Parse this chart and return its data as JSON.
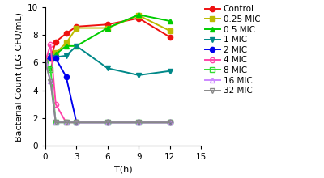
{
  "title": "",
  "xlabel": "T(h)",
  "ylabel": "Bacterial Count (LG CFU/mL)",
  "xlim": [
    0,
    15
  ],
  "ylim": [
    0,
    10
  ],
  "xticks": [
    0,
    3,
    6,
    9,
    12,
    15
  ],
  "yticks": [
    0,
    2,
    4,
    6,
    8,
    10
  ],
  "series": [
    {
      "label": "Control",
      "color": "#EE1111",
      "marker": "o",
      "markerfacecolor": "#EE1111",
      "markeredgecolor": "#EE1111",
      "x": [
        0,
        0.5,
        1,
        2,
        3,
        6,
        9,
        12
      ],
      "y": [
        6.05,
        6.3,
        7.5,
        8.1,
        8.6,
        8.75,
        9.2,
        7.85
      ]
    },
    {
      "label": "0.25 MIC",
      "color": "#BBBB00",
      "marker": "s",
      "markerfacecolor": "#BBBB00",
      "markeredgecolor": "#BBBB00",
      "x": [
        0,
        0.5,
        1,
        2,
        3,
        6,
        9,
        12
      ],
      "y": [
        6.05,
        6.3,
        6.7,
        7.4,
        8.5,
        8.5,
        9.4,
        8.3
      ]
    },
    {
      "label": "0.5 MIC",
      "color": "#00CC00",
      "marker": "^",
      "markerfacecolor": "#00CC00",
      "markeredgecolor": "#00CC00",
      "x": [
        0,
        0.5,
        1,
        2,
        3,
        6,
        9,
        12
      ],
      "y": [
        6.0,
        5.6,
        6.6,
        7.2,
        7.2,
        8.5,
        9.45,
        9.0
      ]
    },
    {
      "label": "1 MIC",
      "color": "#008888",
      "marker": "v",
      "markerfacecolor": "#008888",
      "markeredgecolor": "#008888",
      "x": [
        0,
        0.5,
        1,
        2,
        3,
        6,
        9,
        12
      ],
      "y": [
        6.05,
        6.5,
        6.4,
        6.5,
        7.2,
        5.6,
        5.1,
        5.4
      ]
    },
    {
      "label": "2 MIC",
      "color": "#0000EE",
      "marker": "o",
      "markerfacecolor": "#0000EE",
      "markeredgecolor": "#0000EE",
      "x": [
        0,
        0.5,
        1,
        2,
        3,
        6,
        9,
        12
      ],
      "y": [
        6.05,
        6.4,
        6.3,
        5.0,
        1.7,
        1.7,
        1.7,
        1.7
      ]
    },
    {
      "label": "4 MIC",
      "color": "#FF44AA",
      "marker": "o",
      "markerfacecolor": "none",
      "markeredgecolor": "#FF44AA",
      "x": [
        0,
        0.5,
        1,
        2,
        3,
        6,
        9,
        12
      ],
      "y": [
        6.1,
        7.3,
        3.0,
        1.7,
        1.7,
        1.7,
        1.7,
        1.7
      ]
    },
    {
      "label": "8 MIC",
      "color": "#33DD33",
      "marker": "s",
      "markerfacecolor": "none",
      "markeredgecolor": "#33DD33",
      "x": [
        0,
        0.5,
        1,
        2,
        3,
        6,
        9,
        12
      ],
      "y": [
        6.05,
        5.5,
        1.7,
        1.7,
        1.7,
        1.7,
        1.7,
        1.7
      ]
    },
    {
      "label": "16 MIC",
      "color": "#CC88FF",
      "marker": "^",
      "markerfacecolor": "none",
      "markeredgecolor": "#CC88FF",
      "x": [
        0,
        0.5,
        1,
        2,
        3,
        6,
        9,
        12
      ],
      "y": [
        6.05,
        4.7,
        1.7,
        1.7,
        1.7,
        1.7,
        1.7,
        1.7
      ]
    },
    {
      "label": "32 MIC",
      "color": "#888888",
      "marker": "v",
      "markerfacecolor": "none",
      "markeredgecolor": "#888888",
      "x": [
        0,
        0.5,
        1,
        2,
        3,
        6,
        9,
        12
      ],
      "y": [
        6.05,
        4.6,
        1.7,
        1.7,
        1.7,
        1.7,
        1.7,
        1.7
      ]
    }
  ],
  "legend_fontsize": 7.5,
  "axis_fontsize": 8,
  "tick_fontsize": 7.5,
  "linewidth": 1.4,
  "markersize": 4.5
}
